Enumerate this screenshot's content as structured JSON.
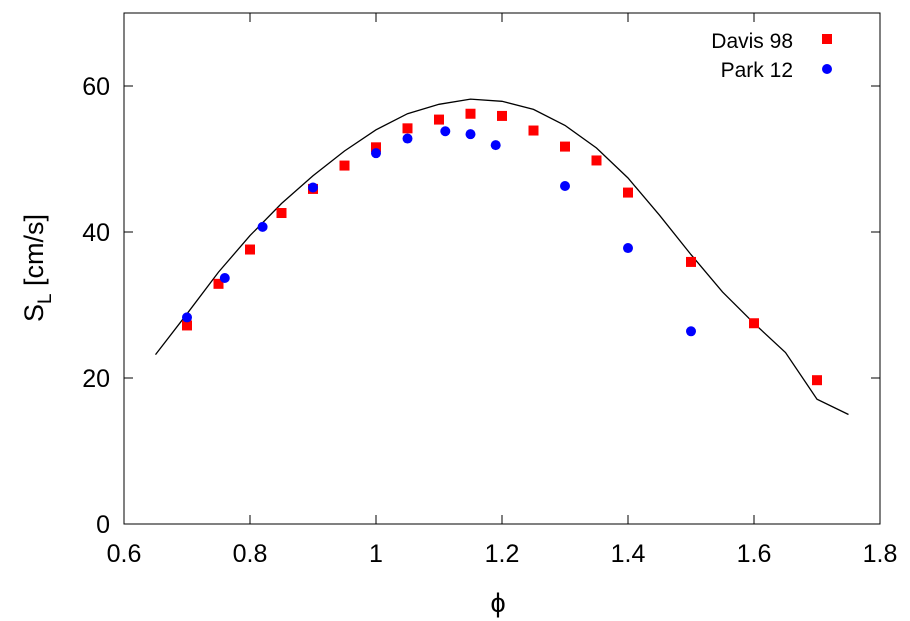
{
  "chart_data": {
    "type": "scatter",
    "title": "",
    "xlabel": "ϕ",
    "ylabel": {
      "main": "S",
      "subscript": "L",
      "unit": " [cm/s]"
    },
    "xlim": [
      0.6,
      1.8
    ],
    "ylim": [
      0,
      70
    ],
    "xticks": [
      "0.6",
      "0.8",
      "1",
      "1.2",
      "1.4",
      "1.6",
      "1.8"
    ],
    "yticks": [
      "0",
      "20",
      "40",
      "60"
    ],
    "grid": false,
    "legend_position": "top-right",
    "series": [
      {
        "name": "",
        "kind": "line",
        "color": "#000000",
        "x": [
          0.65,
          0.7,
          0.75,
          0.8,
          0.85,
          0.9,
          0.95,
          1.0,
          1.05,
          1.1,
          1.15,
          1.2,
          1.25,
          1.3,
          1.35,
          1.4,
          1.45,
          1.5,
          1.55,
          1.6,
          1.65,
          1.7,
          1.75
        ],
        "y": [
          23.2,
          28.8,
          34.5,
          39.5,
          43.9,
          47.7,
          51.1,
          54.0,
          56.2,
          57.5,
          58.2,
          57.9,
          56.8,
          54.6,
          51.5,
          47.4,
          42.3,
          36.9,
          31.8,
          27.5,
          23.5,
          17.1,
          15.0
        ]
      },
      {
        "name": "Davis 98",
        "kind": "square",
        "color": "#ff0000",
        "x": [
          0.7,
          0.75,
          0.8,
          0.85,
          0.9,
          0.95,
          1.0,
          1.05,
          1.1,
          1.15,
          1.2,
          1.25,
          1.3,
          1.35,
          1.4,
          1.5,
          1.6,
          1.7
        ],
        "y": [
          27.2,
          32.9,
          37.6,
          42.6,
          45.9,
          49.1,
          51.6,
          54.2,
          55.4,
          56.2,
          55.9,
          53.9,
          51.7,
          49.8,
          45.4,
          35.9,
          27.5,
          19.7
        ]
      },
      {
        "name": "Park 12",
        "kind": "circle",
        "color": "#0000ff",
        "x": [
          0.7,
          0.76,
          0.82,
          0.9,
          1.0,
          1.05,
          1.11,
          1.15,
          1.19,
          1.3,
          1.4,
          1.5
        ],
        "y": [
          28.3,
          33.7,
          40.7,
          46.1,
          50.8,
          52.8,
          53.8,
          53.4,
          51.9,
          46.3,
          37.8,
          26.4
        ]
      }
    ]
  }
}
